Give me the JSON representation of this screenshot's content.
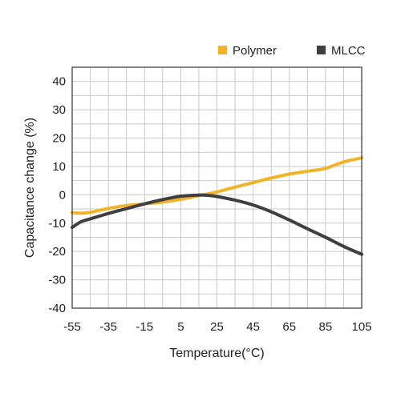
{
  "chart_data": {
    "type": "line",
    "title": "",
    "xlabel": "Temperature(°C)",
    "ylabel": "Capacitance change (%)",
    "xlim": [
      -55,
      105
    ],
    "ylim": [
      -40,
      45
    ],
    "x_ticks": [
      -55,
      -35,
      -15,
      5,
      25,
      45,
      65,
      85,
      105
    ],
    "x_tick_labels": [
      "-55",
      "-35",
      "-15",
      "5",
      "25",
      "45",
      "65",
      "85",
      "105"
    ],
    "y_ticks": [
      40,
      30,
      20,
      10,
      0,
      -10,
      -20,
      -30,
      -40
    ],
    "y_tick_labels": [
      "40",
      "30",
      "20",
      "10",
      "0",
      "-10",
      "-20",
      "-30",
      "-40"
    ],
    "grid": true,
    "legend_position": "top-right",
    "series": [
      {
        "name": "Polymer",
        "color": "#f0b32a",
        "x": [
          -55,
          -50,
          -45,
          -35,
          -25,
          -15,
          -5,
          5,
          15,
          25,
          35,
          45,
          55,
          65,
          75,
          85,
          95,
          105
        ],
        "y": [
          -6.3,
          -6.5,
          -6.2,
          -4.8,
          -3.8,
          -3.2,
          -2.6,
          -1.6,
          -0.3,
          1.0,
          2.7,
          4.3,
          5.9,
          7.3,
          8.3,
          9.3,
          11.6,
          13.0
        ]
      },
      {
        "name": "MLCC",
        "color": "#3f3f3f",
        "x": [
          -55,
          -50,
          -45,
          -35,
          -25,
          -15,
          -5,
          5,
          15,
          20,
          25,
          35,
          45,
          55,
          65,
          75,
          85,
          95,
          105
        ],
        "y": [
          -11.5,
          -9.5,
          -8.5,
          -6.6,
          -4.9,
          -3.2,
          -1.7,
          -0.5,
          -0.1,
          -0.2,
          -0.6,
          -1.9,
          -3.6,
          -6.0,
          -8.9,
          -12.0,
          -15.0,
          -18.2,
          -21.0
        ]
      }
    ]
  }
}
